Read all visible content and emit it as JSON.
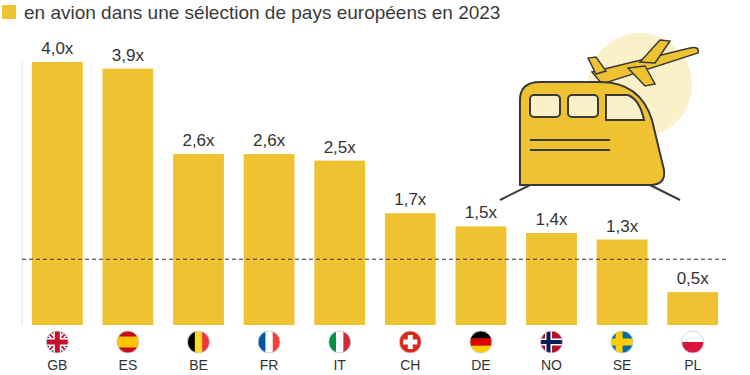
{
  "chart_data": {
    "type": "bar",
    "title": "en avion dans une sélection de pays européens en 2023",
    "categories": [
      "GB",
      "ES",
      "BE",
      "FR",
      "IT",
      "CH",
      "DE",
      "NO",
      "SE",
      "PL"
    ],
    "values": [
      4.0,
      3.9,
      2.6,
      2.6,
      2.5,
      1.7,
      1.5,
      1.4,
      1.3,
      0.5
    ],
    "value_labels": [
      "4,0x",
      "3,9x",
      "2,6x",
      "2,6x",
      "2,5x",
      "1,7x",
      "1,5x",
      "1,4x",
      "1,3x",
      "0,5x"
    ],
    "color": "#efc232",
    "ylim": [
      0,
      4
    ],
    "yticks": [
      1
    ],
    "grid": true,
    "data_labels": true,
    "tick_labels": "x"
  }
}
